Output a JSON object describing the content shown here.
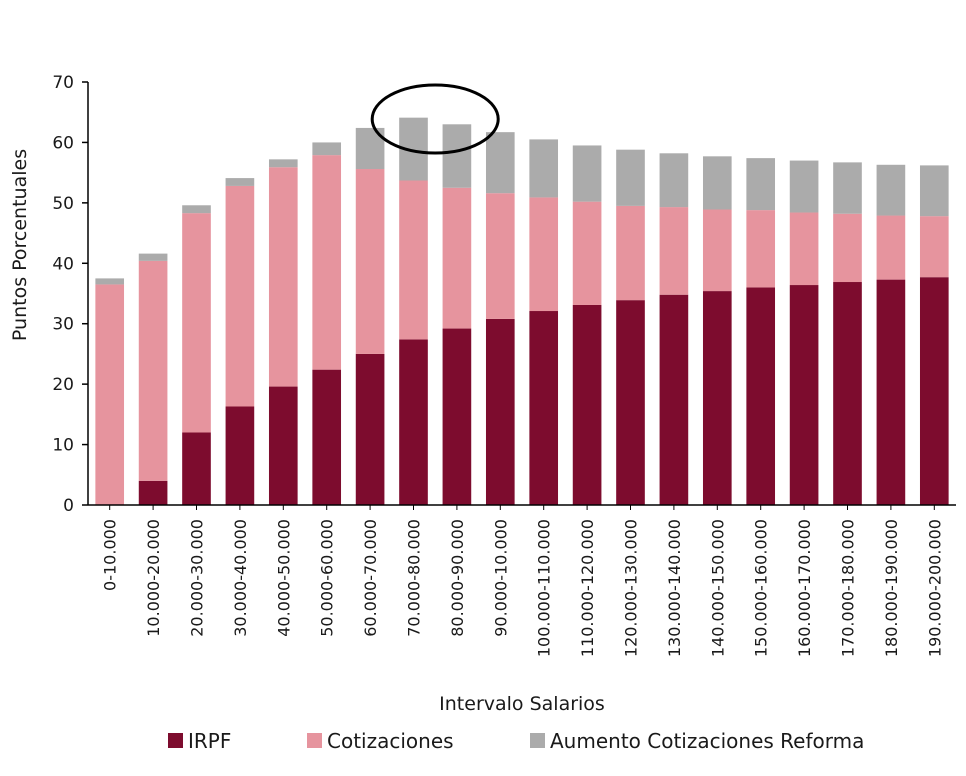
{
  "chart_data": {
    "type": "bar",
    "stacked": true,
    "title": "",
    "xlabel": "Intervalo Salarios",
    "ylabel": "Puntos Porcentuales",
    "ylim": [
      0,
      70
    ],
    "yticks": [
      0,
      10,
      20,
      30,
      40,
      50,
      60,
      70
    ],
    "categories": [
      "0-10.000",
      "10.000-20.000",
      "20.000-30.000",
      "30.000-40.000",
      "40.000-50.000",
      "50.000-60.000",
      "60.000-70.000",
      "70.000-80.000",
      "80.000-90.000",
      "90.000-10.000",
      "100.000-110.000",
      "110.000-120.000",
      "120.000-130.000",
      "130.000-140.000",
      "140.000-150.000",
      "150.000-160.000",
      "160.000-170.000",
      "170.000-180.000",
      "180.000-190.000",
      "190.000-200.000"
    ],
    "series": [
      {
        "name": "IRPF",
        "color": "#7d0c2e",
        "values": [
          0,
          4,
          12,
          16.3,
          19.6,
          22.4,
          25,
          27.4,
          29.2,
          30.8,
          32.1,
          33.1,
          33.9,
          34.8,
          35.4,
          36,
          36.4,
          36.9,
          37.3,
          37.7
        ]
      },
      {
        "name": "Cotizaciones",
        "color": "#e6949e",
        "values": [
          36.5,
          36.4,
          36.3,
          36.5,
          36.3,
          35.5,
          30.6,
          26.3,
          23.3,
          20.8,
          18.8,
          17.1,
          15.6,
          14.5,
          13.5,
          12.8,
          12,
          11.3,
          10.6,
          10.1
        ]
      },
      {
        "name": "Aumento Cotizaciones Reforma",
        "color": "#ababab",
        "values": [
          1,
          1.2,
          1.3,
          1.3,
          1.3,
          2.1,
          6.8,
          10.4,
          10.5,
          10.1,
          9.6,
          9.3,
          9.3,
          8.9,
          8.8,
          8.6,
          8.6,
          8.5,
          8.4,
          8.4
        ]
      }
    ],
    "legend_position": "bottom",
    "annotation": {
      "type": "ellipse",
      "around_categories": [
        "70.000-80.000",
        "80.000-90.000"
      ]
    }
  }
}
